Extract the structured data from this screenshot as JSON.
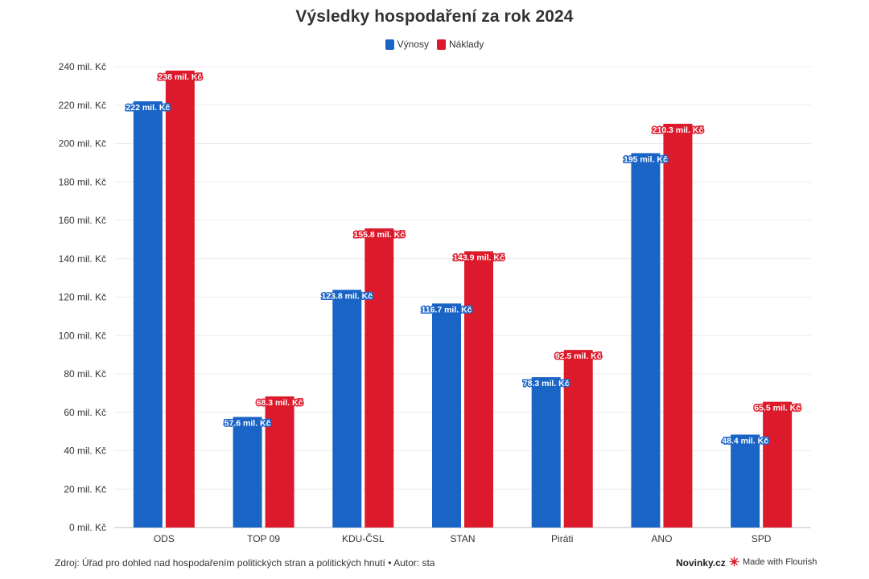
{
  "chart_data": {
    "type": "bar",
    "title": "Výsledky hospodaření za rok 2024",
    "categories": [
      "ODS",
      "TOP 09",
      "KDU-ČSL",
      "STAN",
      "Piráti",
      "ANO",
      "SPD"
    ],
    "series": [
      {
        "name": "Výnosy",
        "color": "#1a64c6",
        "values": [
          222,
          57.6,
          123.8,
          116.7,
          78.3,
          195,
          48.4
        ],
        "labels": [
          "222 mil. Kč",
          "57.6 mil. Kč",
          "123.8 mil. Kč",
          "116.7 mil. Kč",
          "78.3 mil. Kč",
          "195 mil. Kč",
          "48.4 mil. Kč"
        ]
      },
      {
        "name": "Náklady",
        "color": "#dc1a2b",
        "values": [
          238,
          68.3,
          155.8,
          143.9,
          92.5,
          210.3,
          65.5
        ],
        "labels": [
          "238 mil. Kč",
          "68.3 mil. Kč",
          "155.8 mil. Kč",
          "143.9 mil. Kč",
          "92.5 mil. Kč",
          "210.3 mil. Kč",
          "65.5 mil. Kč"
        ]
      }
    ],
    "ylim": [
      0,
      240
    ],
    "yticks": [
      0,
      20,
      40,
      60,
      80,
      100,
      120,
      140,
      160,
      180,
      200,
      220,
      240
    ],
    "ytick_labels": [
      "0 mil. Kč",
      "20 mil. Kč",
      "40 mil. Kč",
      "60 mil. Kč",
      "80 mil. Kč",
      "100 mil. Kč",
      "120 mil. Kč",
      "140 mil. Kč",
      "160 mil. Kč",
      "180 mil. Kč",
      "200 mil. Kč",
      "220 mil. Kč",
      "240 mil. Kč"
    ],
    "grid": true,
    "legend_position": "top-center"
  },
  "footer": {
    "source": "Zdroj: Úřad pro dohled nad hospodařením politických stran a politických hnutí • Autor: sta",
    "brand": "Novinky.cz",
    "flourish": "Made with Flourish"
  }
}
